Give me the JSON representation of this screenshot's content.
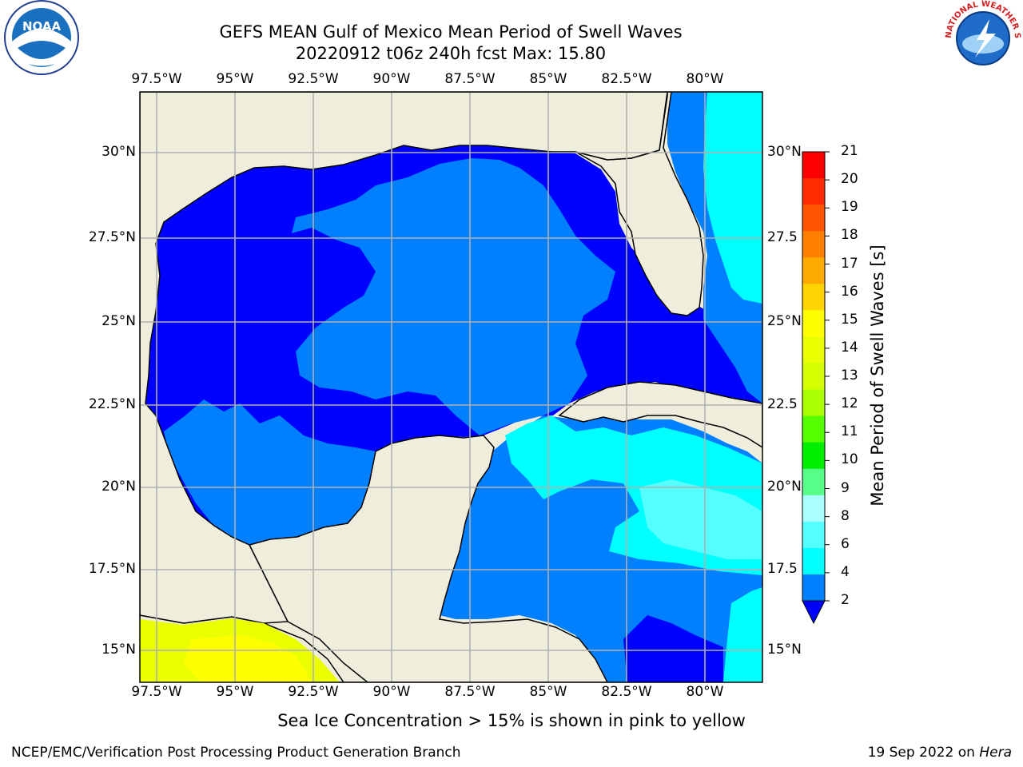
{
  "title_line1": "GEFS MEAN Gulf of Mexico Mean Period of Swell Waves",
  "title_line2": "20220912 t06z 240h fcst   Max: 15.80",
  "lon_ticks": [
    "97.5°W",
    "95°W",
    "92.5°W",
    "90°W",
    "87.5°W",
    "85°W",
    "82.5°W",
    "80°W"
  ],
  "lat_ticks_left": [
    "30°N",
    "27.5°N",
    "25°N",
    "22.5°N",
    "20°N",
    "17.5°N",
    "15°N"
  ],
  "lat_ticks_right": [
    "30°N",
    "27.5",
    "25°N",
    "22.5",
    "20°N",
    "17.5",
    "15°N"
  ],
  "colorbar": {
    "label": "Mean Period of Swell Waves [s]",
    "ticks": [
      "21",
      "20",
      "19",
      "18",
      "17",
      "16",
      "15",
      "14",
      "13",
      "12",
      "11",
      "10",
      "9",
      "8",
      "6",
      "4",
      "2"
    ],
    "colors": [
      "#ff0000",
      "#ff2a00",
      "#ff5500",
      "#ff7f00",
      "#ffaa00",
      "#ffd400",
      "#ffff00",
      "#eaff00",
      "#d4ff00",
      "#aaff00",
      "#55ff00",
      "#00ee00",
      "#55ff88",
      "#aaffff",
      "#55ffff",
      "#00ffff",
      "#0080ff"
    ],
    "extend_color": "#0000ff"
  },
  "note": "Sea Ice Concentration > 15% is shown in pink to yellow",
  "footer_left": "NCEP/EMC/Verification Post Processing Product Generation Branch",
  "footer_right_date": "19 Sep 2022 on ",
  "footer_right_host": "Hera",
  "logos": {
    "left": "noaa-logo",
    "right": "nws-logo"
  },
  "logo_text": {
    "noaa": "NOAA",
    "nws": "NATIONAL WEATHER SERVICE"
  }
}
